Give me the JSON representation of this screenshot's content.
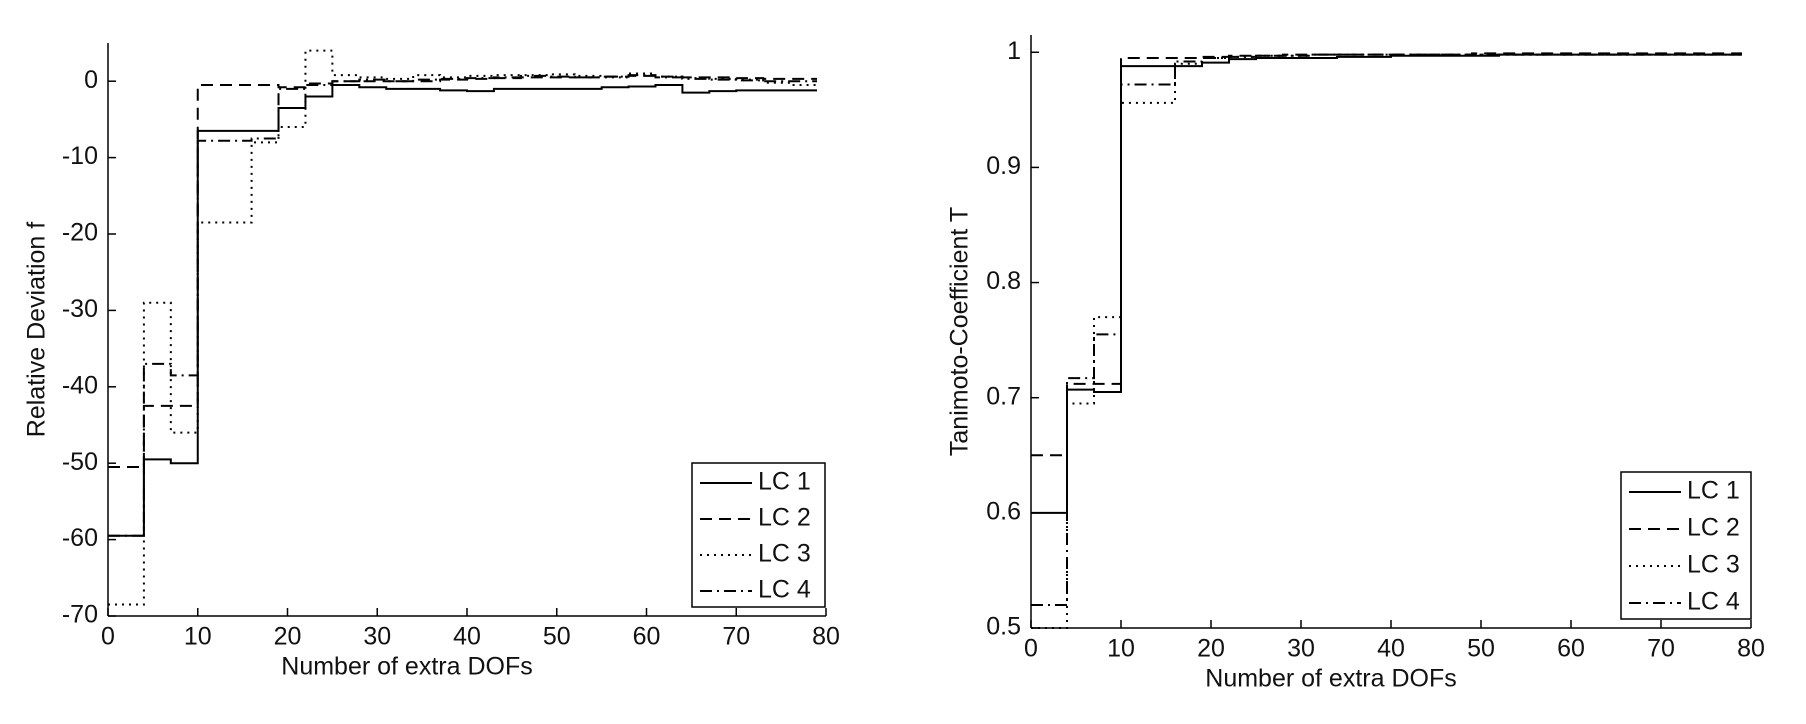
{
  "chart_data": [
    {
      "type": "step",
      "xlabel": "Number of extra DOFs",
      "ylabel": "Relative Deviation f",
      "xlim": [
        0,
        80
      ],
      "xticks": [
        0,
        10,
        20,
        30,
        40,
        50,
        60,
        70,
        80
      ],
      "ylim": [
        -70,
        5
      ],
      "yticks": [
        -70,
        -60,
        -50,
        -40,
        -30,
        -20,
        -10,
        0
      ],
      "legend": "lower right",
      "x": [
        0,
        4,
        7,
        10,
        13,
        16,
        19,
        22,
        25,
        28,
        31,
        34,
        37,
        40,
        43,
        46,
        49,
        52,
        55,
        58,
        61,
        64,
        67,
        70,
        73,
        76,
        79
      ],
      "series": [
        {
          "name": "LC 1",
          "color": "#000000",
          "linestyle": "-",
          "values": [
            -59.5,
            -49.5,
            -50,
            -6.5,
            -6.5,
            -6.5,
            -3.5,
            -2,
            -0.5,
            -0.8,
            -1,
            -1,
            -1.2,
            -1.3,
            -1,
            -1,
            -1,
            -1,
            -0.8,
            -0.7,
            -0.5,
            -1.5,
            -1.3,
            -1.2,
            -1.2,
            -1.2,
            -1.2
          ]
        },
        {
          "name": "LC 2",
          "color": "#000000",
          "linestyle": "--",
          "values": [
            -50.5,
            -42.5,
            -42.5,
            -0.5,
            -0.5,
            -0.5,
            -0.8,
            -0.3,
            0,
            0,
            0,
            0,
            0.2,
            0.3,
            0.4,
            0.5,
            0.5,
            0.5,
            0.6,
            0.7,
            0.6,
            0.5,
            0.5,
            0.4,
            0.3,
            0.3,
            0.3
          ]
        },
        {
          "name": "LC 3",
          "color": "#000000",
          "linestyle": ":",
          "values": [
            -68.5,
            -29,
            -46,
            -18.5,
            -18.5,
            -8,
            -6,
            4,
            0.8,
            0.5,
            0.3,
            0.8,
            0.5,
            0.7,
            0.8,
            0.8,
            0.9,
            0.7,
            0.5,
            1,
            0.6,
            0.4,
            0.3,
            0.2,
            -0.2,
            -0.5,
            -0.5
          ]
        },
        {
          "name": "LC 4",
          "color": "#000000",
          "linestyle": "-.",
          "values": [
            -59.5,
            -37,
            -38.5,
            -7.8,
            -7.8,
            -7.5,
            -1,
            -0.5,
            0,
            0.2,
            0,
            0.2,
            0.3,
            0.4,
            0.5,
            0.7,
            0.6,
            0.5,
            0.6,
            0.8,
            0.5,
            0.3,
            0.2,
            0.1,
            0,
            0,
            0
          ]
        }
      ]
    },
    {
      "type": "step",
      "xlabel": "Number of extra DOFs",
      "ylabel": "Tanimoto-Coefficient T",
      "xlim": [
        0,
        80
      ],
      "xticks": [
        0,
        10,
        20,
        30,
        40,
        50,
        60,
        70,
        80
      ],
      "ylim": [
        0.5,
        1.015
      ],
      "yticks": [
        0.5,
        0.6,
        0.7,
        0.8,
        0.9,
        1
      ],
      "legend": "lower right",
      "x": [
        0,
        4,
        7,
        10,
        13,
        16,
        19,
        22,
        25,
        28,
        31,
        34,
        37,
        40,
        43,
        46,
        49,
        52,
        55,
        58,
        61,
        64,
        67,
        70,
        73,
        76,
        79
      ],
      "series": [
        {
          "name": "LC 1",
          "color": "#000000",
          "linestyle": "-",
          "values": [
            0.6,
            0.707,
            0.705,
            0.988,
            0.988,
            0.988,
            0.991,
            0.994,
            0.995,
            0.995,
            0.995,
            0.996,
            0.996,
            0.997,
            0.997,
            0.997,
            0.997,
            0.998,
            0.998,
            0.998,
            0.998,
            0.998,
            0.998,
            0.998,
            0.998,
            0.998,
            0.998
          ]
        },
        {
          "name": "LC 2",
          "color": "#000000",
          "linestyle": "--",
          "values": [
            0.65,
            0.712,
            0.712,
            0.995,
            0.995,
            0.995,
            0.996,
            0.997,
            0.997,
            0.998,
            0.998,
            0.998,
            0.998,
            0.998,
            0.998,
            0.998,
            0.999,
            0.999,
            0.999,
            0.999,
            0.999,
            0.999,
            0.999,
            0.999,
            0.999,
            0.999,
            0.999
          ]
        },
        {
          "name": "LC 3",
          "color": "#000000",
          "linestyle": ":",
          "values": [
            0.5,
            0.695,
            0.77,
            0.956,
            0.956,
            0.99,
            0.995,
            0.996,
            0.997,
            0.997,
            0.998,
            0.998,
            0.998,
            0.998,
            0.998,
            0.998,
            0.998,
            0.998,
            0.998,
            0.998,
            0.998,
            0.998,
            0.998,
            0.998,
            0.998,
            0.998,
            0.998
          ]
        },
        {
          "name": "LC 4",
          "color": "#000000",
          "linestyle": "-.",
          "values": [
            0.52,
            0.717,
            0.755,
            0.972,
            0.972,
            0.992,
            0.995,
            0.996,
            0.997,
            0.997,
            0.998,
            0.998,
            0.998,
            0.998,
            0.998,
            0.998,
            0.998,
            0.998,
            0.998,
            0.998,
            0.998,
            0.998,
            0.998,
            0.998,
            0.998,
            0.998,
            0.998
          ]
        }
      ]
    }
  ]
}
